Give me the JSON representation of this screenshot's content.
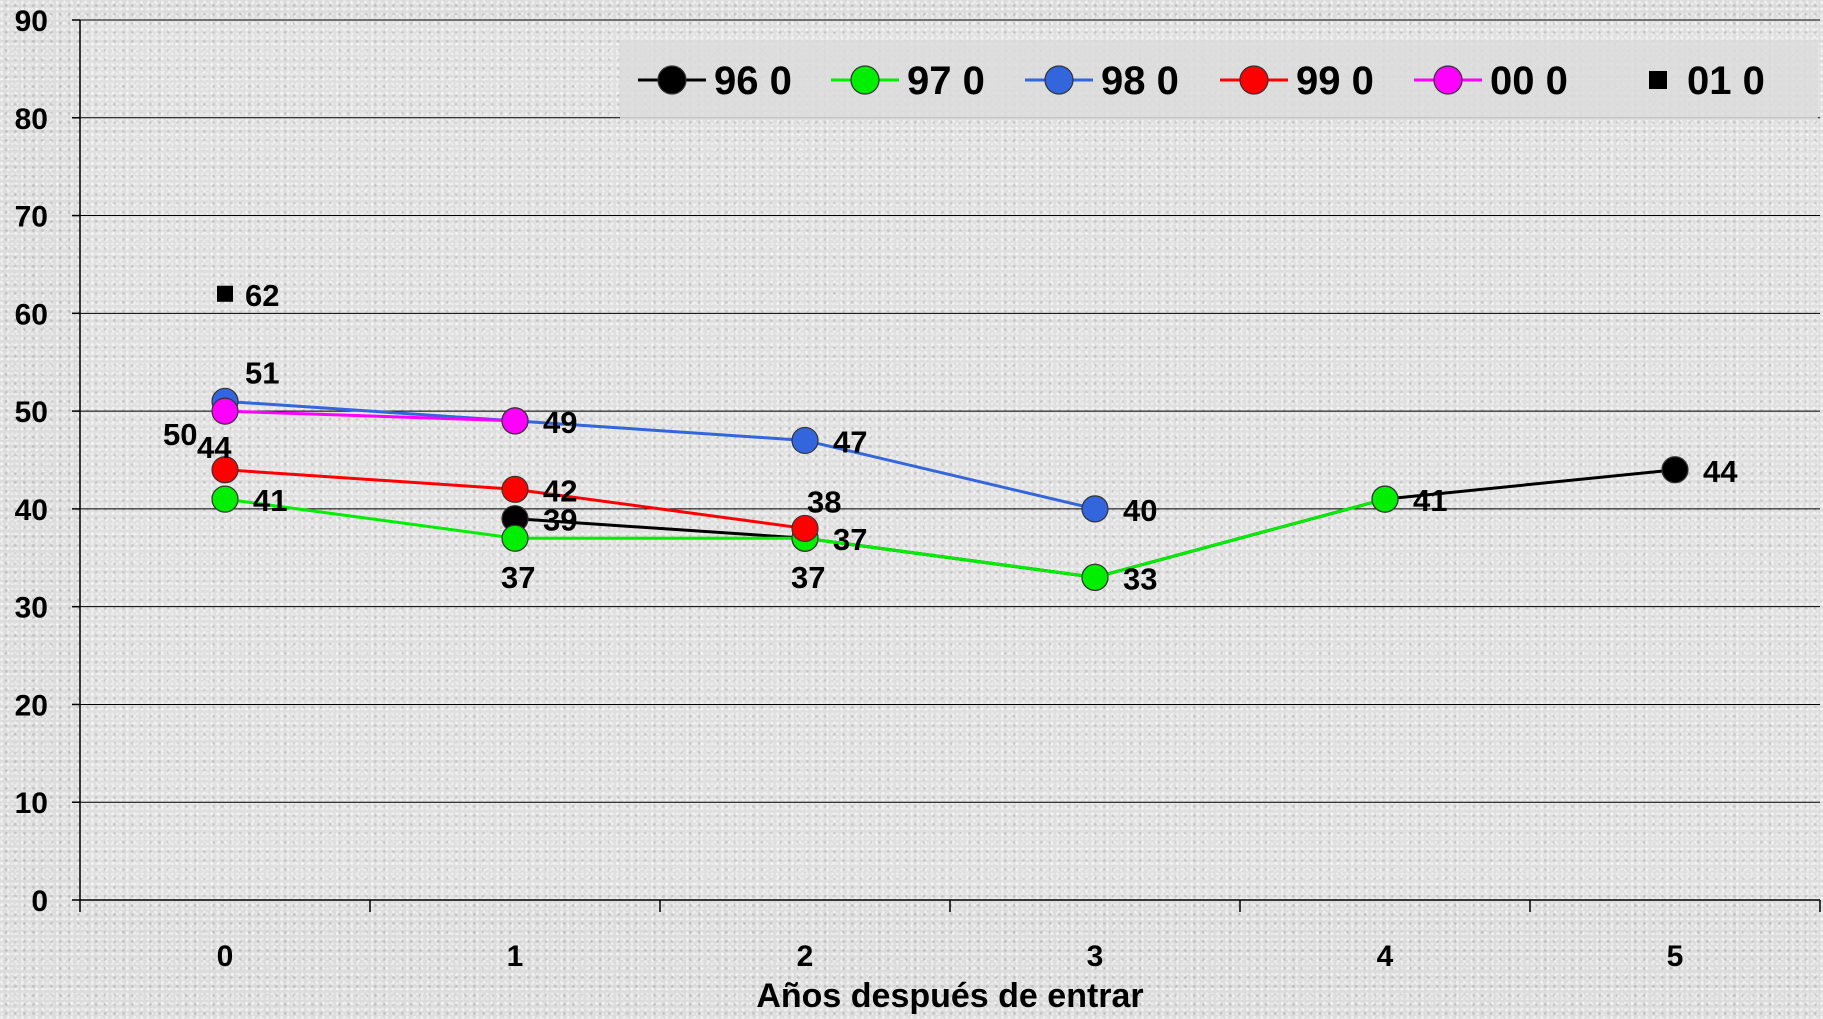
{
  "chart_data": {
    "type": "line",
    "title": "",
    "xlabel": "Años después de entrar",
    "ylabel": "",
    "ylim": [
      0,
      90
    ],
    "yticks": [
      0,
      10,
      20,
      30,
      40,
      50,
      60,
      70,
      80,
      90
    ],
    "categories": [
      "0",
      "1",
      "2",
      "3",
      "4",
      "5"
    ],
    "grid": true,
    "legend_position": "top-right",
    "series": [
      {
        "name": "96 0",
        "color": "#000000",
        "marker": "circle",
        "points": [
          {
            "x": 1,
            "y": 39,
            "label": "39"
          },
          {
            "x": 2,
            "y": 37,
            "label": "37"
          },
          {
            "x": 3,
            "y": 33,
            "label": ""
          },
          {
            "x": 4,
            "y": 41,
            "label": "41"
          },
          {
            "x": 5,
            "y": 44,
            "label": "44"
          }
        ]
      },
      {
        "name": "97 0",
        "color": "#00ee00",
        "marker": "circle",
        "points": [
          {
            "x": 0,
            "y": 41,
            "label": "41"
          },
          {
            "x": 1,
            "y": 37,
            "label": "37"
          },
          {
            "x": 2,
            "y": 37,
            "label": "37"
          },
          {
            "x": 3,
            "y": 33,
            "label": "33"
          },
          {
            "x": 4,
            "y": 41,
            "label": ""
          }
        ]
      },
      {
        "name": "98 0",
        "color": "#3366dd",
        "marker": "circle",
        "points": [
          {
            "x": 0,
            "y": 51,
            "label": "51"
          },
          {
            "x": 1,
            "y": 49,
            "label": ""
          },
          {
            "x": 2,
            "y": 47,
            "label": "47"
          },
          {
            "x": 3,
            "y": 40,
            "label": "40"
          }
        ]
      },
      {
        "name": "99 0",
        "color": "#ff0000",
        "marker": "circle",
        "points": [
          {
            "x": 0,
            "y": 44,
            "label": "44"
          },
          {
            "x": 1,
            "y": 42,
            "label": "42"
          },
          {
            "x": 2,
            "y": 38,
            "label": "38"
          }
        ]
      },
      {
        "name": "00 0",
        "color": "#ff00ff",
        "marker": "circle",
        "points": [
          {
            "x": 0,
            "y": 50,
            "label": "50"
          },
          {
            "x": 1,
            "y": 49,
            "label": "49"
          }
        ]
      },
      {
        "name": "01 0",
        "color": "#000000",
        "marker": "square",
        "points": [
          {
            "x": 0,
            "y": 62,
            "label": "62"
          }
        ]
      }
    ]
  }
}
